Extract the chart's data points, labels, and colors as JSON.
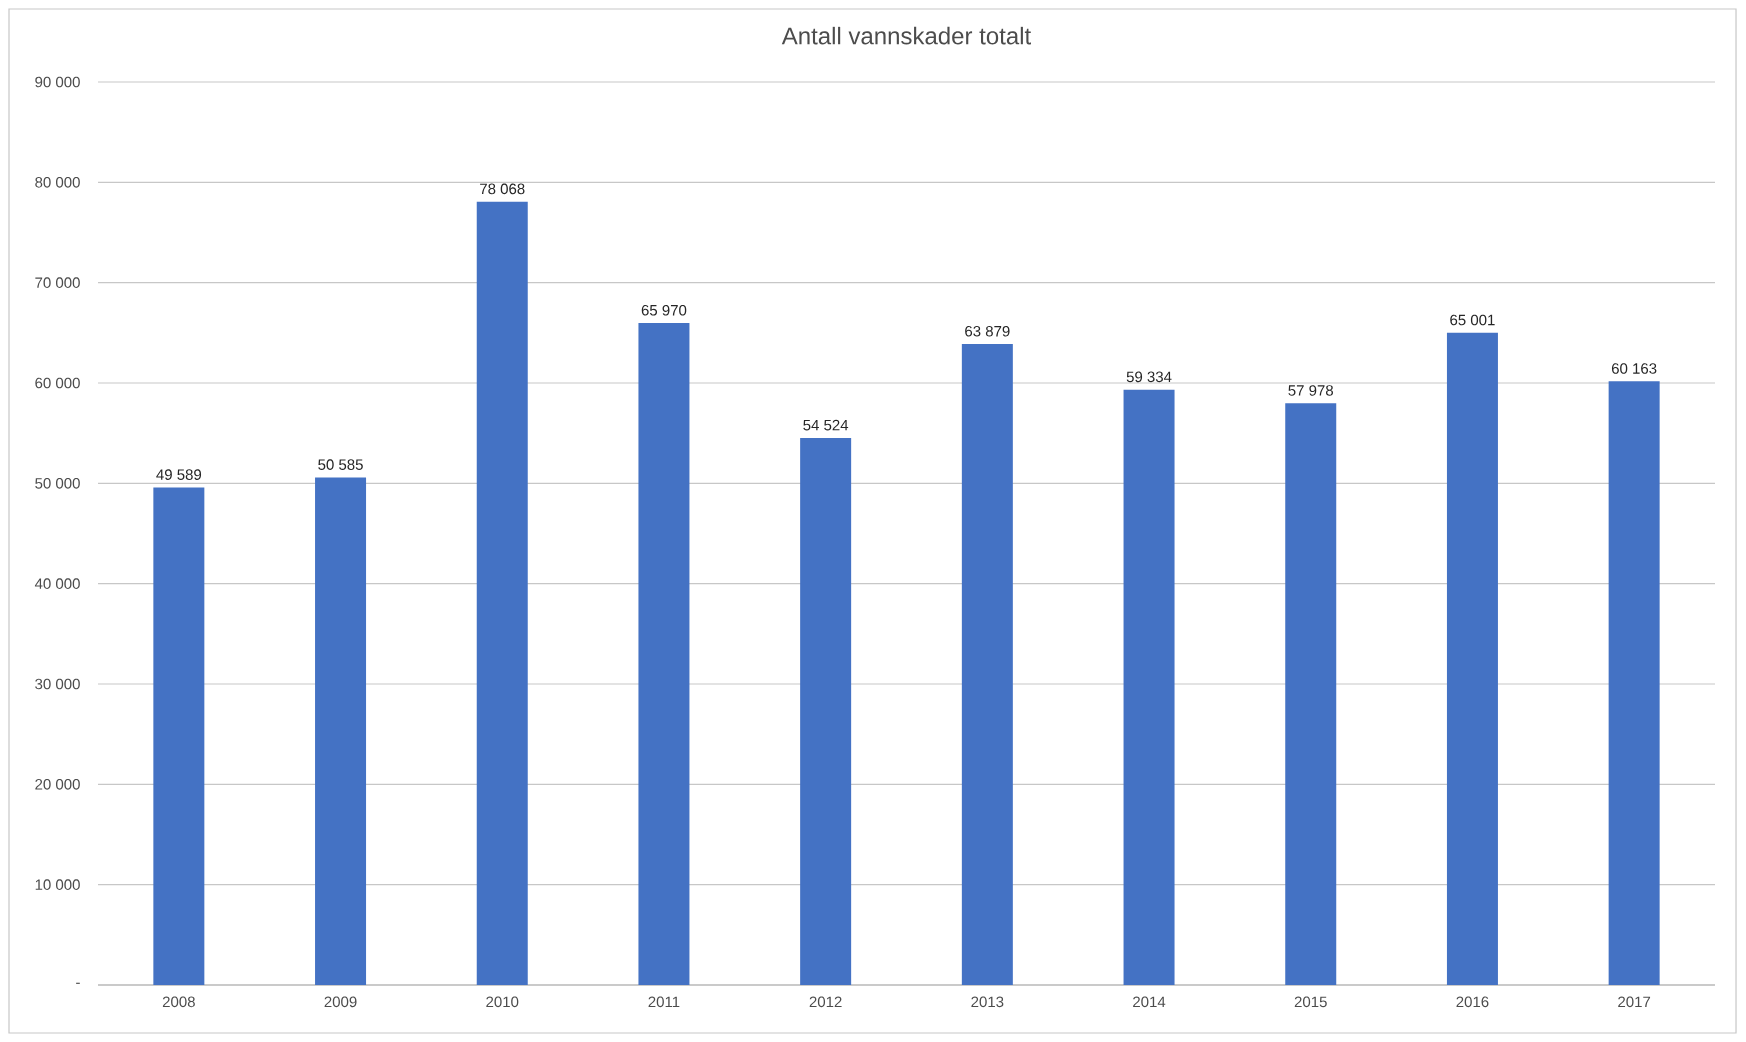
{
  "chart_data": {
    "type": "bar",
    "title": "Antall vannskader totalt",
    "categories": [
      "2008",
      "2009",
      "2010",
      "2011",
      "2012",
      "2013",
      "2014",
      "2015",
      "2016",
      "2017"
    ],
    "values": [
      49589,
      50585,
      78068,
      65970,
      54524,
      63879,
      59334,
      57978,
      65001,
      60163
    ],
    "value_labels": [
      "49 589",
      "50 585",
      "78 068",
      "65 970",
      "54 524",
      "63 879",
      "59 334",
      "57 978",
      "65 001",
      "60 163"
    ],
    "color": "#4472c4",
    "ylim": [
      0,
      90000
    ],
    "yticks": [
      {
        "value": 0,
        "label": "-"
      },
      {
        "value": 10000,
        "label": "10 000"
      },
      {
        "value": 20000,
        "label": "20 000"
      },
      {
        "value": 30000,
        "label": "30 000"
      },
      {
        "value": 40000,
        "label": "40 000"
      },
      {
        "value": 50000,
        "label": "50 000"
      },
      {
        "value": 60000,
        "label": "60 000"
      },
      {
        "value": 70000,
        "label": "70 000"
      },
      {
        "value": 80000,
        "label": "80 000"
      },
      {
        "value": 90000,
        "label": "90 000"
      }
    ],
    "grid": "y"
  }
}
